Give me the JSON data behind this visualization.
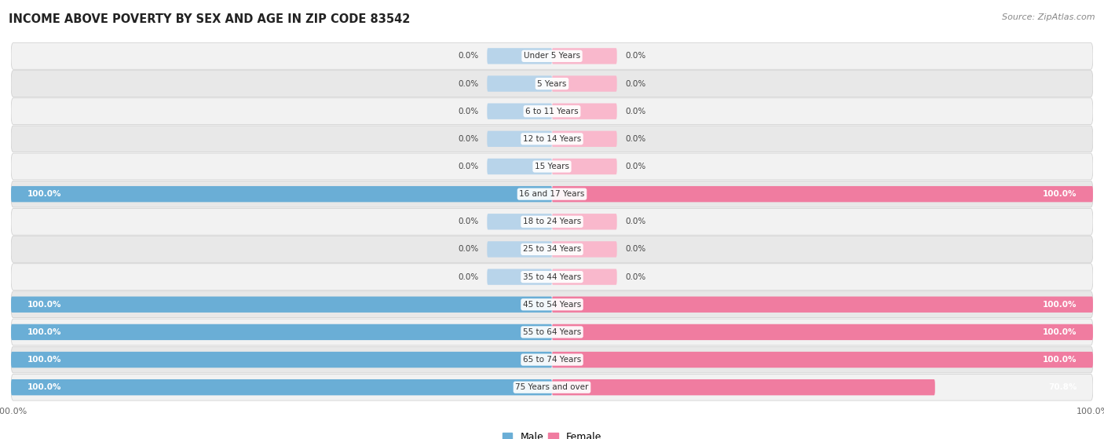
{
  "title": "INCOME ABOVE POVERTY BY SEX AND AGE IN ZIP CODE 83542",
  "source": "Source: ZipAtlas.com",
  "categories": [
    "Under 5 Years",
    "5 Years",
    "6 to 11 Years",
    "12 to 14 Years",
    "15 Years",
    "16 and 17 Years",
    "18 to 24 Years",
    "25 to 34 Years",
    "35 to 44 Years",
    "45 to 54 Years",
    "55 to 64 Years",
    "65 to 74 Years",
    "75 Years and over"
  ],
  "male_values": [
    0.0,
    0.0,
    0.0,
    0.0,
    0.0,
    100.0,
    0.0,
    0.0,
    0.0,
    100.0,
    100.0,
    100.0,
    100.0
  ],
  "female_values": [
    0.0,
    0.0,
    0.0,
    0.0,
    0.0,
    100.0,
    0.0,
    0.0,
    0.0,
    100.0,
    100.0,
    100.0,
    70.8
  ],
  "male_color": "#6aaed6",
  "female_color": "#f07ca0",
  "male_color_light": "#b8d4ea",
  "female_color_light": "#f9b8cc",
  "row_bg_color_light": "#f2f2f2",
  "row_bg_color_dark": "#e8e8e8",
  "title_fontsize": 10.5,
  "source_fontsize": 8,
  "label_fontsize": 7.5,
  "axis_label_fontsize": 8,
  "background_color": "#ffffff",
  "max_value": 100.0,
  "stub_size": 12.0
}
